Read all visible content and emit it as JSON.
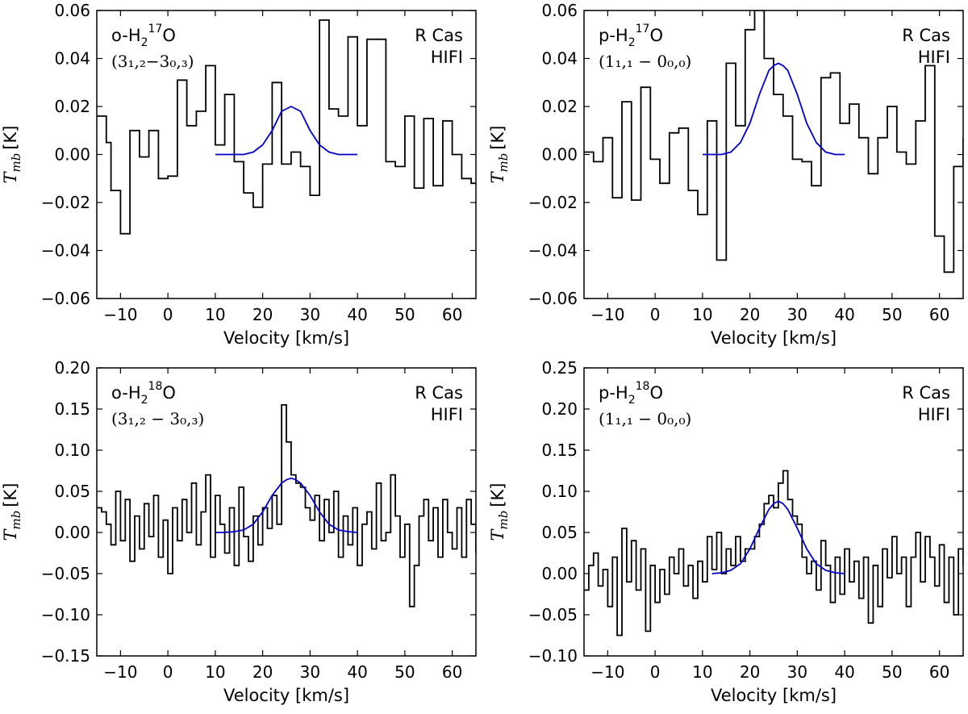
{
  "chart_data": [
    {
      "type": "line",
      "xlabel": "Velocity [km/s]",
      "ylabel": "T_mb [K]",
      "ylabel_parts": {
        "symbol": "T",
        "sub": "mb",
        "unit": "[K]"
      },
      "xlim": [
        -15,
        65
      ],
      "ylim": [
        -0.06,
        0.06
      ],
      "xticks": [
        -10,
        0,
        10,
        20,
        30,
        40,
        50,
        60
      ],
      "xtick_labels": [
        "−10",
        "0",
        "10",
        "20",
        "30",
        "40",
        "50",
        "60"
      ],
      "yticks": [
        -0.06,
        -0.04,
        -0.02,
        0.0,
        0.02,
        0.04,
        0.06
      ],
      "ytick_labels": [
        "−0.06",
        "−0.04",
        "−0.02",
        "0.00",
        "0.02",
        "0.04",
        "0.06"
      ],
      "molecule": {
        "prefix": "o-H",
        "sub": "2",
        "sup": "17",
        "suffix": "O"
      },
      "transition": "(3",
      "transition_text": "(3₁,₂−3₀,₃)",
      "source": "R Cas",
      "instrument": "HIFI",
      "grid": false,
      "series": [
        {
          "kind": "step",
          "x": [
            -15,
            -14,
            -13,
            -12,
            -11,
            -10,
            -9,
            -8,
            -7,
            -6,
            -5,
            -4,
            -3,
            -2,
            -1,
            0,
            1,
            2,
            3,
            4,
            5,
            6,
            7,
            8,
            9,
            10,
            11,
            12,
            13,
            14,
            15,
            16,
            17,
            18,
            19,
            20,
            21,
            22,
            23,
            24,
            25,
            26,
            27,
            28,
            29,
            30,
            31,
            32,
            33,
            34,
            35,
            36,
            37,
            38,
            39,
            40,
            41,
            42,
            43,
            44,
            45,
            46,
            47,
            48,
            49,
            50,
            51,
            52,
            53,
            54,
            55,
            56,
            57,
            58,
            59,
            60,
            61,
            62,
            63,
            64,
            65
          ],
          "y": [
            0.016,
            0.016,
            0.005,
            -0.015,
            -0.015,
            -0.033,
            -0.033,
            0.01,
            0.01,
            -0.001,
            -0.001,
            0.01,
            0.01,
            -0.01,
            -0.01,
            -0.009,
            -0.009,
            0.031,
            0.031,
            0.012,
            0.012,
            0.018,
            0.018,
            0.037,
            0.037,
            0.004,
            0.004,
            0.025,
            0.025,
            -0.003,
            -0.003,
            -0.016,
            -0.016,
            -0.022,
            -0.022,
            -0.004,
            -0.004,
            0.03,
            0.03,
            -0.004,
            -0.004,
            0.001,
            0.001,
            -0.005,
            -0.005,
            -0.017,
            -0.017,
            0.056,
            0.056,
            0.019,
            0.019,
            0.016,
            0.016,
            0.049,
            0.049,
            0.012,
            0.012,
            0.048,
            0.048,
            0.048,
            0.048,
            -0.003,
            -0.003,
            -0.005,
            -0.005,
            0.016,
            0.016,
            -0.014,
            -0.014,
            0.015,
            0.015,
            -0.013,
            -0.013,
            0.014,
            0.014,
            0.0,
            0.0,
            -0.01,
            -0.01,
            -0.012,
            -0.012
          ],
          "note": "binned spectrum, values estimated"
        },
        {
          "kind": "fit",
          "color": "#0000cc",
          "x": [
            10,
            12,
            14,
            16,
            18,
            20,
            22,
            24,
            25,
            26,
            27,
            28,
            30,
            32,
            34,
            36,
            38,
            40
          ],
          "y": [
            0.0,
            0.0,
            0.0,
            0.0,
            0.001,
            0.004,
            0.01,
            0.018,
            0.019,
            0.02,
            0.019,
            0.018,
            0.01,
            0.004,
            0.001,
            0.0,
            0.0,
            0.0
          ]
        }
      ]
    },
    {
      "type": "line",
      "xlabel": "Velocity [km/s]",
      "ylabel_parts": {
        "symbol": "T",
        "sub": "mb",
        "unit": "[K]"
      },
      "xlim": [
        -15,
        65
      ],
      "ylim": [
        -0.06,
        0.06
      ],
      "xticks": [
        -10,
        0,
        10,
        20,
        30,
        40,
        50,
        60
      ],
      "xtick_labels": [
        "−10",
        "0",
        "10",
        "20",
        "30",
        "40",
        "50",
        "60"
      ],
      "yticks": [
        -0.06,
        -0.04,
        -0.02,
        0.0,
        0.02,
        0.04,
        0.06
      ],
      "ytick_labels": [
        "−0.06",
        "−0.04",
        "−0.02",
        "0.00",
        "0.02",
        "0.04",
        "0.06"
      ],
      "molecule": {
        "prefix": "p-H",
        "sub": "2",
        "sup": "17",
        "suffix": "O"
      },
      "transition_text": "(1₁,₁ − 0₀,₀)",
      "source": "R Cas",
      "instrument": "HIFI",
      "grid": false,
      "series": [
        {
          "kind": "step",
          "x": [
            -15,
            -13,
            -11,
            -9,
            -7,
            -5,
            -3,
            -1,
            1,
            3,
            5,
            7,
            9,
            11,
            13,
            15,
            17,
            19,
            21,
            23,
            25,
            27,
            29,
            31,
            33,
            35,
            37,
            39,
            41,
            43,
            45,
            47,
            49,
            51,
            53,
            55,
            57,
            59,
            61,
            63,
            65
          ],
          "y": [
            0.001,
            -0.003,
            0.007,
            -0.018,
            0.022,
            -0.019,
            0.028,
            -0.002,
            -0.012,
            0.009,
            0.011,
            -0.015,
            -0.025,
            0.014,
            -0.044,
            0.038,
            0.012,
            0.052,
            0.06,
            0.04,
            0.025,
            0.016,
            -0.002,
            -0.003,
            -0.013,
            0.032,
            0.034,
            0.013,
            0.021,
            0.007,
            -0.008,
            0.007,
            0.02,
            0.001,
            -0.004,
            0.014,
            0.037,
            -0.034,
            -0.049,
            -0.005,
            0.007
          ],
          "note": "binned spectrum, values estimated"
        },
        {
          "kind": "fit",
          "color": "#0000cc",
          "x": [
            10,
            12,
            14,
            16,
            18,
            20,
            22,
            24,
            25,
            26,
            27,
            28,
            30,
            32,
            34,
            36,
            38,
            40
          ],
          "y": [
            0.0,
            0.0,
            0.0,
            0.001,
            0.005,
            0.013,
            0.025,
            0.035,
            0.037,
            0.038,
            0.037,
            0.035,
            0.025,
            0.013,
            0.005,
            0.001,
            0.0,
            0.0
          ]
        }
      ]
    },
    {
      "type": "line",
      "xlabel": "Velocity [km/s]",
      "ylabel_parts": {
        "symbol": "T",
        "sub": "mb",
        "unit": "[K]"
      },
      "xlim": [
        -15,
        65
      ],
      "ylim": [
        -0.15,
        0.2
      ],
      "xticks": [
        -10,
        0,
        10,
        20,
        30,
        40,
        50,
        60
      ],
      "xtick_labels": [
        "−10",
        "0",
        "10",
        "20",
        "30",
        "40",
        "50",
        "60"
      ],
      "yticks": [
        -0.15,
        -0.1,
        -0.05,
        0.0,
        0.05,
        0.1,
        0.15,
        0.2
      ],
      "ytick_labels": [
        "−0.15",
        "−0.10",
        "−0.05",
        "0.00",
        "0.05",
        "0.10",
        "0.15",
        "0.20"
      ],
      "molecule": {
        "prefix": "o-H",
        "sub": "2",
        "sup": "18",
        "suffix": "O"
      },
      "transition_text": "(3₁,₂ − 3₀,₃)",
      "source": "R Cas",
      "instrument": "HIFI",
      "grid": false,
      "series": [
        {
          "kind": "step",
          "x": [
            -15,
            -14,
            -13,
            -12,
            -11,
            -10,
            -9,
            -8,
            -7,
            -6,
            -5,
            -4,
            -3,
            -2,
            -1,
            0,
            1,
            2,
            3,
            4,
            5,
            6,
            7,
            8,
            9,
            10,
            11,
            12,
            13,
            14,
            15,
            16,
            17,
            18,
            19,
            20,
            21,
            22,
            23,
            24,
            25,
            26,
            27,
            28,
            29,
            30,
            31,
            32,
            33,
            34,
            35,
            36,
            37,
            38,
            39,
            40,
            41,
            42,
            43,
            44,
            45,
            46,
            47,
            48,
            49,
            50,
            51,
            52,
            53,
            54,
            55,
            56,
            57,
            58,
            59,
            60,
            61,
            62,
            63,
            64,
            65
          ],
          "y": [
            0.03,
            0.025,
            0.01,
            -0.015,
            0.05,
            -0.01,
            0.04,
            -0.035,
            0.02,
            -0.02,
            0.035,
            -0.005,
            0.045,
            -0.03,
            0.015,
            -0.05,
            0.03,
            -0.01,
            0.04,
            0.0,
            0.06,
            -0.015,
            0.025,
            0.07,
            -0.03,
            0.045,
            0.01,
            -0.025,
            0.03,
            -0.04,
            0.055,
            -0.005,
            -0.035,
            0.02,
            -0.015,
            0.03,
            0.005,
            0.045,
            0.01,
            0.155,
            0.11,
            0.07,
            0.06,
            0.055,
            0.03,
            0.015,
            0.045,
            -0.01,
            0.04,
            0.0,
            0.05,
            -0.03,
            0.02,
            -0.015,
            0.03,
            -0.04,
            0.01,
            0.025,
            -0.02,
            0.06,
            -0.01,
            0.0,
            0.07,
            0.02,
            -0.03,
            0.01,
            -0.09,
            -0.04,
            0.02,
            0.04,
            -0.01,
            0.03,
            -0.03,
            0.04,
            0.0,
            -0.02,
            0.03,
            -0.03,
            0.04,
            0.01,
            -0.025
          ],
          "note": "binned spectrum, values estimated"
        },
        {
          "kind": "fit",
          "color": "#0000cc",
          "x": [
            10,
            12,
            14,
            16,
            18,
            20,
            22,
            24,
            25,
            26,
            27,
            28,
            30,
            32,
            34,
            36,
            38,
            40
          ],
          "y": [
            0.0,
            0.0,
            0.001,
            0.003,
            0.01,
            0.025,
            0.045,
            0.06,
            0.064,
            0.066,
            0.064,
            0.06,
            0.045,
            0.025,
            0.01,
            0.003,
            0.001,
            0.0
          ]
        }
      ]
    },
    {
      "type": "line",
      "xlabel": "Velocity [km/s]",
      "ylabel_parts": {
        "symbol": "T",
        "sub": "mb",
        "unit": "[K]"
      },
      "xlim": [
        -15,
        65
      ],
      "ylim": [
        -0.1,
        0.25
      ],
      "xticks": [
        -10,
        0,
        10,
        20,
        30,
        40,
        50,
        60
      ],
      "xtick_labels": [
        "−10",
        "0",
        "10",
        "20",
        "30",
        "40",
        "50",
        "60"
      ],
      "yticks": [
        -0.1,
        -0.05,
        0.0,
        0.05,
        0.1,
        0.15,
        0.2,
        0.25
      ],
      "ytick_labels": [
        "−0.10",
        "−0.05",
        "0.00",
        "0.05",
        "0.10",
        "0.15",
        "0.20",
        "0.25"
      ],
      "molecule": {
        "prefix": "p-H",
        "sub": "2",
        "sup": "18",
        "suffix": "O"
      },
      "transition_text": "(1₁,₁ − 0₀,₀)",
      "source": "R Cas",
      "instrument": "HIFI",
      "grid": false,
      "series": [
        {
          "kind": "step",
          "x": [
            -15,
            -14,
            -13,
            -12,
            -11,
            -10,
            -9,
            -8,
            -7,
            -6,
            -5,
            -4,
            -3,
            -2,
            -1,
            0,
            1,
            2,
            3,
            4,
            5,
            6,
            7,
            8,
            9,
            10,
            11,
            12,
            13,
            14,
            15,
            16,
            17,
            18,
            19,
            20,
            21,
            22,
            23,
            24,
            25,
            26,
            27,
            28,
            29,
            30,
            31,
            32,
            33,
            34,
            35,
            36,
            37,
            38,
            39,
            40,
            41,
            42,
            43,
            44,
            45,
            46,
            47,
            48,
            49,
            50,
            51,
            52,
            53,
            54,
            55,
            56,
            57,
            58,
            59,
            60,
            61,
            62,
            63,
            64,
            65
          ],
          "y": [
            -0.02,
            0.01,
            0.025,
            -0.015,
            0.005,
            -0.04,
            0.02,
            -0.075,
            0.055,
            -0.01,
            0.04,
            -0.02,
            0.03,
            -0.07,
            0.01,
            -0.035,
            0.005,
            -0.025,
            0.02,
            0.0,
            0.03,
            -0.015,
            0.01,
            -0.03,
            0.015,
            -0.01,
            0.045,
            0.005,
            0.05,
            0.0,
            0.03,
            0.01,
            0.045,
            0.015,
            0.03,
            0.03,
            0.045,
            0.06,
            0.085,
            0.095,
            0.08,
            0.11,
            0.125,
            0.09,
            0.07,
            0.06,
            0.02,
            0.0,
            0.015,
            -0.02,
            0.04,
            0.01,
            -0.035,
            0.02,
            -0.025,
            0.03,
            -0.01,
            0.015,
            -0.03,
            0.02,
            -0.06,
            0.01,
            -0.04,
            0.03,
            -0.005,
            0.045,
            0.0,
            0.02,
            -0.04,
            0.02,
            0.05,
            -0.01,
            0.045,
            0.02,
            -0.015,
            0.035,
            -0.035,
            0.02,
            -0.05,
            0.03,
            0.01
          ],
          "note": "binned spectrum, values estimated"
        },
        {
          "kind": "fit",
          "color": "#0000cc",
          "x": [
            12,
            14,
            16,
            18,
            20,
            22,
            24,
            25,
            26,
            27,
            28,
            30,
            32,
            34,
            36,
            38,
            40
          ],
          "y": [
            0.0,
            0.001,
            0.004,
            0.012,
            0.03,
            0.055,
            0.078,
            0.085,
            0.088,
            0.085,
            0.078,
            0.055,
            0.03,
            0.012,
            0.004,
            0.001,
            0.0
          ]
        }
      ]
    }
  ]
}
